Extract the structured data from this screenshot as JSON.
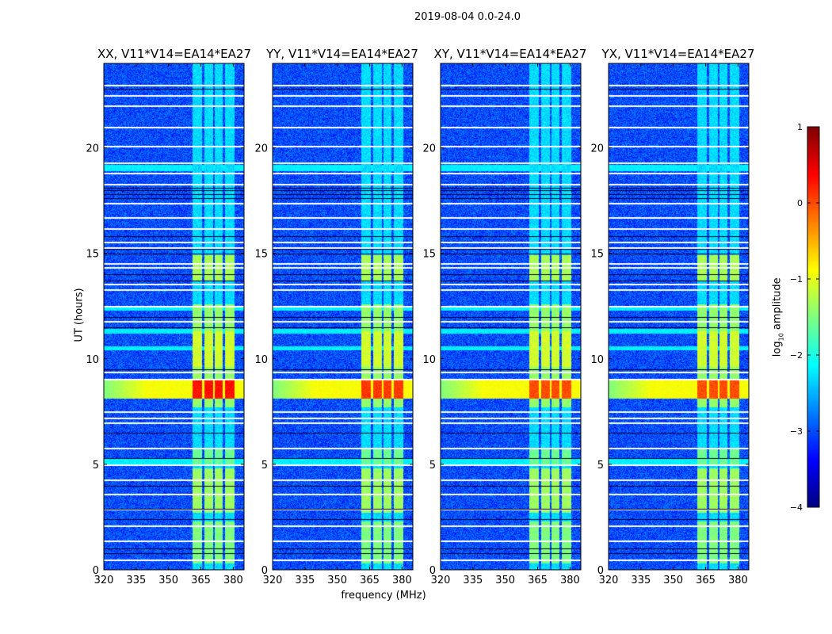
{
  "chart_data": {
    "type": "heatmap",
    "title": "2019-08-04 0.0-24.0",
    "xlabel": "frequency (MHz)",
    "ylabel": "UT (hours)",
    "xlim": [
      320,
      385
    ],
    "ylim": [
      0,
      24
    ],
    "xticks": [
      "320",
      "335",
      "350",
      "365",
      "380"
    ],
    "xtick_values": [
      320,
      335,
      350,
      365,
      380
    ],
    "yticks": [
      "0",
      "5",
      "10",
      "15",
      "20"
    ],
    "ytick_values": [
      0,
      5,
      10,
      15,
      20
    ],
    "colormap": "jet",
    "colorbar": {
      "label_main": "log",
      "label_sub": "10",
      "label_rest": " amplitude",
      "range": [
        -4,
        1
      ],
      "ticks": [
        "1",
        "0",
        "−1",
        "−2",
        "−3",
        "−4"
      ],
      "tick_values": [
        1,
        0,
        -1,
        -2,
        -3,
        -4
      ]
    },
    "panels": [
      {
        "title": "XX, V11*V14=EA14*EA27",
        "hot_band_level": 0.3
      },
      {
        "title": "YY, V11*V14=EA14*EA27",
        "hot_band_level": 0.1
      },
      {
        "title": "XY, V11*V14=EA14*EA27",
        "hot_band_level": 0.0
      },
      {
        "title": "YX, V11*V14=EA14*EA27",
        "hot_band_level": 0.0
      }
    ],
    "features": {
      "background_level": -3.0,
      "channel_blocks_mhz": [
        [
          361,
          365.5
        ],
        [
          366.5,
          370.5
        ],
        [
          371.5,
          375.2
        ],
        [
          376.3,
          380.7
        ]
      ],
      "hot_band_hours": [
        8.1,
        9.0
      ],
      "flagged_hours_white": [
        0.5,
        1.4,
        2.1,
        2.9,
        3.6,
        4.3,
        5.0,
        5.8,
        7.0,
        7.2,
        7.5,
        9.05,
        9.4,
        11.8,
        12.5,
        13.3,
        13.55,
        14.35,
        14.55,
        15.3,
        15.55,
        16.2,
        16.7,
        17.4,
        18.3,
        18.8,
        19.3,
        20.1,
        21.0,
        22.0,
        22.5,
        23.0
      ],
      "flagged_hours_black": [
        0.8,
        1.0,
        2.4,
        2.9,
        4.0,
        5.3,
        6.5,
        9.5,
        11.5,
        12.0,
        13.7,
        14.0,
        15.0,
        15.2,
        15.8,
        17.6,
        17.8,
        18.0,
        18.1,
        22.8
      ]
    }
  }
}
